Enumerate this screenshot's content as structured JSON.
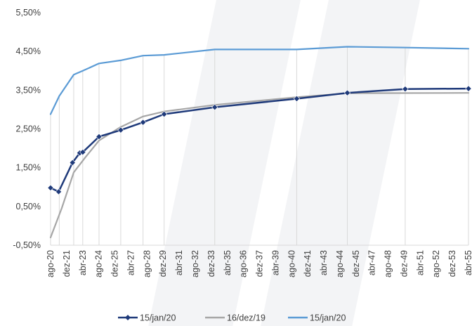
{
  "chart_data": {
    "type": "line",
    "title": "",
    "xlabel": "",
    "ylabel": "",
    "ylim": [
      -0.5,
      5.5
    ],
    "y_ticks": [
      "-0,50%",
      "0,50%",
      "1,50%",
      "2,50%",
      "3,50%",
      "4,50%",
      "5,50%"
    ],
    "y_tick_values": [
      -0.5,
      0.5,
      1.5,
      2.5,
      3.5,
      4.5,
      5.5
    ],
    "x_tick_labels": [
      "ago-20",
      "dez-21",
      "abr-23",
      "ago-24",
      "dez-25",
      "abr-27",
      "ago-28",
      "dez-29",
      "abr-31",
      "ago-32",
      "dez-33",
      "abr-35",
      "ago-36",
      "dez-37",
      "abr-39",
      "ago-40",
      "dez-41",
      "abr-43",
      "ago-44",
      "dez-45",
      "abr-47",
      "ago-48",
      "dez-49",
      "abr-51",
      "ago-52",
      "dez-53",
      "abr-55"
    ],
    "x_range_years": [
      2020.58,
      2055.25
    ],
    "x_tick_start_year": 2020.583,
    "x_tick_step_years": 1.3333,
    "legend_position": "bottom",
    "gridlines": "vertical lines at vertices",
    "series": [
      {
        "name": "15/jan/20",
        "color": "#1F3A7A",
        "marker": "diamond",
        "points": [
          [
            2020.58,
            0.98
          ],
          [
            2021.25,
            0.88
          ],
          [
            2022.4,
            1.63
          ],
          [
            2023.0,
            1.88
          ],
          [
            2023.25,
            1.9
          ],
          [
            2024.6,
            2.3
          ],
          [
            2026.4,
            2.47
          ],
          [
            2028.25,
            2.67
          ],
          [
            2030.0,
            2.88
          ],
          [
            2034.2,
            3.06
          ],
          [
            2041.0,
            3.28
          ],
          [
            2045.2,
            3.43
          ],
          [
            2050.0,
            3.53
          ],
          [
            2055.25,
            3.54
          ]
        ]
      },
      {
        "name": "16/dez/19",
        "color": "#A6A6A6",
        "marker": "none",
        "points": [
          [
            2020.58,
            -0.3
          ],
          [
            2021.5,
            0.45
          ],
          [
            2022.5,
            1.38
          ],
          [
            2023.5,
            1.78
          ],
          [
            2024.6,
            2.2
          ],
          [
            2026.4,
            2.55
          ],
          [
            2028.25,
            2.82
          ],
          [
            2030.0,
            2.95
          ],
          [
            2034.2,
            3.12
          ],
          [
            2041.0,
            3.32
          ],
          [
            2045.2,
            3.42
          ],
          [
            2055.25,
            3.43
          ]
        ]
      },
      {
        "name": "15/jan/20",
        "color": "#5B9BD5",
        "marker": "none",
        "points": [
          [
            2020.58,
            2.88
          ],
          [
            2021.3,
            3.35
          ],
          [
            2022.5,
            3.9
          ],
          [
            2023.25,
            4.0
          ],
          [
            2024.6,
            4.19
          ],
          [
            2026.4,
            4.27
          ],
          [
            2028.25,
            4.39
          ],
          [
            2030.0,
            4.41
          ],
          [
            2034.2,
            4.55
          ],
          [
            2041.0,
            4.55
          ],
          [
            2045.2,
            4.62
          ],
          [
            2050.0,
            4.6
          ],
          [
            2055.25,
            4.57
          ]
        ]
      }
    ]
  }
}
